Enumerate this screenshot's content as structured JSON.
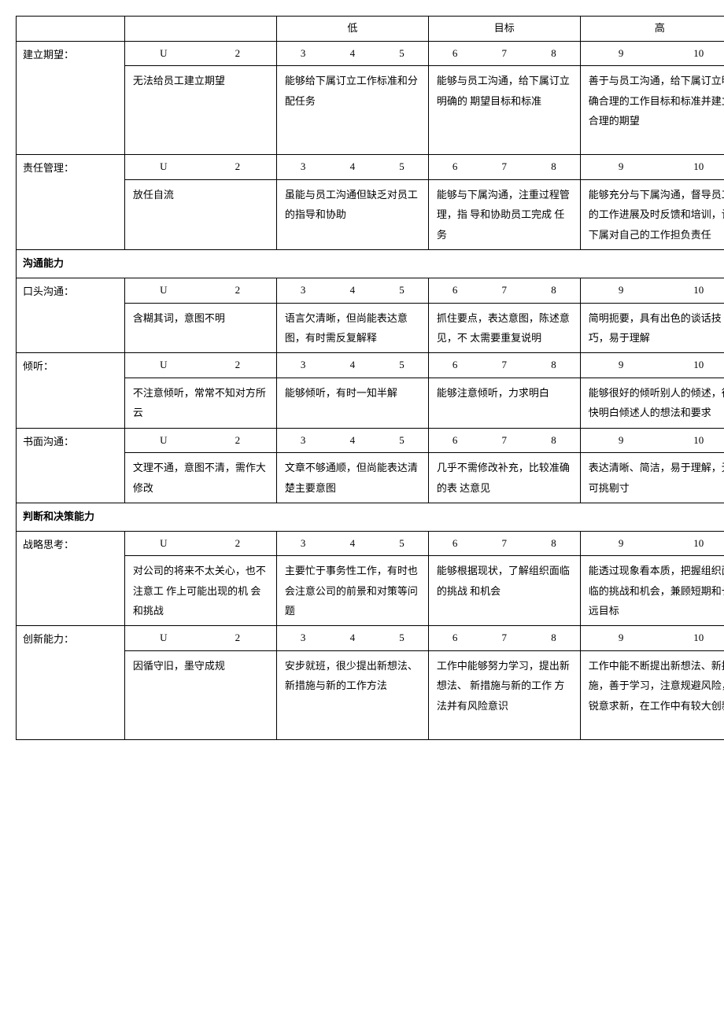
{
  "header": {
    "low": "低",
    "target": "目标",
    "high": "高"
  },
  "scales": {
    "u2": [
      "U",
      "2"
    ],
    "s345": [
      "3",
      "4",
      "5"
    ],
    "s678": [
      "6",
      "7",
      "8"
    ],
    "s910": [
      "9",
      "10"
    ]
  },
  "sections": [
    {
      "title": null,
      "rows": [
        {
          "label": "建立期望：",
          "descs": [
            "无法给员工建立期望",
            "能够给下属订立工作标准和分配任务",
            "能够与员工沟通，给下属订立明确的 期望目标和标准",
            "善于与员工沟通，给下属订立明确合理的工作目标和标准并建立合理的期望"
          ],
          "tall": true
        },
        {
          "label": "责任管理：",
          "descs": [
            "放任自流",
            "虽能与员工沟通但缺乏对员工的指导和协助",
            "能够与下属沟通，注重过程管理，指 导和协助员工完成 任务",
            "能够充分与下属沟通，督导员工的工作进展及时反馈和培训，让下属对自己的工作担负责任"
          ]
        }
      ]
    },
    {
      "title": "沟通能力",
      "rows": [
        {
          "label": "口头沟通：",
          "descs": [
            "含糊其词，意图不明",
            "语言欠清晰，但尚能表达意图，有时需反复解释",
            "抓住要点，表达意图，陈述意见，不 太需要重复说明",
            "简明扼要，具有出色的谈话技巧，易于理解"
          ]
        },
        {
          "label": "倾听：",
          "descs": [
            "不注意倾听，常常不知对方所云",
            "能够倾听，有时一知半解",
            "能够注意倾听，力求明白",
            "能够很好的倾听别人的倾述，很快明白倾述人的想法和要求"
          ]
        },
        {
          "label": "书面沟通：",
          "descs": [
            "文理不通，意图不清，需作大修改",
            "文章不够通顺，但尚能表达清楚主要意图",
            "几乎不需修改补充，比较准确的表 达意见",
            "表达清晰、简洁，易于理解，无可挑剔寸"
          ]
        }
      ]
    },
    {
      "title": "判断和决策能力",
      "rows": [
        {
          "label": "战略思考：",
          "descs": [
            "对公司的将来不太关心，也不注意工 作上可能出现的机 会和挑战",
            "主要忙于事务性工作，有时也会注意公司的前景和对策等问题",
            "能够根据现状，了解组织面临的挑战 和机会",
            "能透过现象看本质，把握组织面临的挑战和机会，兼顾短期和长远目标"
          ]
        },
        {
          "label": "创新能力：",
          "descs": [
            "因循守旧，墨守成规",
            "安步就班，很少提出新想法、新措施与新的工作方法",
            "工作中能够努力学习，提出新想法、 新措施与新的工作 方法并有风险意识",
            "工作中能不断提出新想法、新措施，善于学习，注意规避风险，锐意求新，在工作中有较大创新"
          ],
          "tall": true
        }
      ]
    }
  ]
}
